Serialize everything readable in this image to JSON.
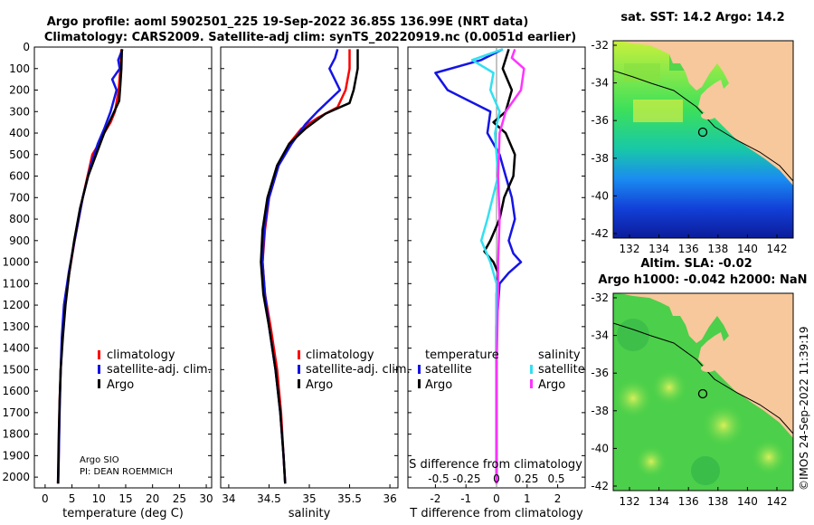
{
  "header": {
    "line1": "Argo profile: aoml 5902501_225 19-Sep-2022 36.85S 136.99E (NRT data)",
    "line2": "Climatology: CARS2009. Satellite-adj clim: synTS_20220919.nc (0.0051d earlier)"
  },
  "footer": {
    "stamp": "©IMOS 24-Sep-2022 11:39:19",
    "credit1": "Argo SIO",
    "credit2": "PI: DEAN ROEMMICH"
  },
  "colors": {
    "climatology": "#ff0000",
    "satellite": "#1414e6",
    "argo": "#000000",
    "temp_satellite": "#1414e6",
    "sal_satellite": "#33e0f0",
    "sal_argo": "#ff33ff",
    "land": "#f7c89b"
  },
  "chart_data": [
    {
      "type": "line",
      "id": "temperature",
      "xlabel": "temperature (deg C)",
      "xlim": [
        -2,
        31
      ],
      "xticks": [
        0,
        5,
        10,
        15,
        20,
        25,
        30
      ],
      "ylim": [
        2050,
        0
      ],
      "yticks": [
        0,
        100,
        200,
        300,
        400,
        500,
        600,
        700,
        800,
        900,
        1000,
        1100,
        1200,
        1300,
        1400,
        1500,
        1600,
        1700,
        1800,
        1900,
        2000
      ],
      "legend": [
        "climatology",
        "satellite-adj. clim.",
        "Argo"
      ],
      "series": [
        {
          "name": "climatology",
          "color": "#ff0000",
          "x": [
            14.2,
            14.0,
            13.7,
            13.0,
            12.2,
            11.0,
            10.0,
            8.8,
            7.0,
            5.5,
            4.5,
            3.6,
            3.2,
            2.9,
            2.7,
            2.6,
            2.5,
            2.4
          ],
          "y": [
            10,
            100,
            200,
            300,
            350,
            400,
            450,
            500,
            700,
            900,
            1050,
            1200,
            1350,
            1500,
            1650,
            1800,
            1950,
            2030
          ]
        },
        {
          "name": "satellite-adj. clim.",
          "color": "#1414e6",
          "x": [
            14.4,
            13.6,
            13.9,
            12.5,
            13.3,
            12.2,
            11.0,
            9.8,
            8.5,
            7.0,
            5.5,
            4.4,
            3.5,
            3.1,
            2.9,
            2.7,
            2.55,
            2.45
          ],
          "y": [
            10,
            60,
            100,
            150,
            200,
            300,
            380,
            450,
            550,
            700,
            900,
            1050,
            1200,
            1350,
            1500,
            1700,
            1900,
            2030
          ]
        },
        {
          "name": "Argo",
          "color": "#000000",
          "x": [
            14.3,
            14.2,
            14.0,
            13.8,
            12.5,
            11.0,
            9.5,
            8.0,
            6.5,
            5.4,
            4.5,
            3.8,
            3.3,
            2.9,
            2.7,
            2.55,
            2.45,
            2.4
          ],
          "y": [
            10,
            100,
            180,
            250,
            320,
            400,
            500,
            600,
            750,
            900,
            1050,
            1200,
            1350,
            1500,
            1650,
            1800,
            1950,
            2030
          ]
        }
      ]
    },
    {
      "type": "line",
      "id": "salinity",
      "xlabel": "salinity",
      "xlim": [
        33.9,
        36.1
      ],
      "xticks": [
        34,
        34.5,
        35,
        35.5,
        36
      ],
      "ylim": [
        2050,
        0
      ],
      "legend": [
        "climatology",
        "satellite-adj. clim.",
        "Argo"
      ],
      "series": [
        {
          "name": "climatology",
          "color": "#ff0000",
          "x": [
            35.5,
            35.5,
            35.45,
            35.35,
            35.1,
            34.9,
            34.75,
            34.62,
            34.5,
            34.45,
            34.42,
            34.45,
            34.52,
            34.6,
            34.65,
            34.68,
            34.7
          ],
          "y": [
            10,
            100,
            200,
            280,
            330,
            380,
            450,
            550,
            700,
            850,
            1000,
            1150,
            1300,
            1500,
            1700,
            1900,
            2030
          ]
        },
        {
          "name": "satellite-adj. clim.",
          "color": "#1414e6",
          "x": [
            35.35,
            35.32,
            35.25,
            35.38,
            35.1,
            34.95,
            34.78,
            34.62,
            34.5,
            34.44,
            34.42,
            34.45,
            34.5,
            34.58,
            34.64,
            34.68,
            34.7
          ],
          "y": [
            10,
            50,
            100,
            200,
            300,
            360,
            450,
            550,
            700,
            850,
            1000,
            1150,
            1300,
            1500,
            1700,
            1900,
            2030
          ]
        },
        {
          "name": "Argo",
          "color": "#000000",
          "x": [
            35.6,
            35.6,
            35.55,
            35.5,
            35.2,
            34.95,
            34.75,
            34.6,
            34.48,
            34.42,
            34.4,
            34.43,
            34.5,
            34.58,
            34.64,
            34.68,
            34.7
          ],
          "y": [
            10,
            100,
            200,
            260,
            310,
            380,
            450,
            550,
            700,
            850,
            1000,
            1150,
            1300,
            1500,
            1700,
            1900,
            2030
          ]
        }
      ]
    },
    {
      "type": "line",
      "id": "differences",
      "xlabel": "T difference from climatology",
      "xlabel2": "S difference from climatology",
      "xlim": [
        -2.9,
        2.9
      ],
      "xticks": [
        -2,
        -1,
        0,
        1,
        2
      ],
      "s_ticks": [
        "-0.5",
        "-0.25",
        "0",
        "0.25",
        "0.5"
      ],
      "ylim": [
        2050,
        0
      ],
      "legend_header_t": "temperature",
      "legend_header_s": "salinity",
      "legend_t": [
        "satellite",
        "Argo"
      ],
      "legend_s": [
        "satellite",
        "Argo"
      ],
      "series": [
        {
          "name": "T satellite",
          "color": "#1414e6",
          "x": [
            0.2,
            -0.5,
            -2.0,
            -1.6,
            -0.2,
            -0.3,
            0.1,
            0.3,
            0.5,
            0.6,
            0.4,
            0.55,
            0.8,
            0.4,
            0.1,
            0,
            0,
            0
          ],
          "y": [
            10,
            60,
            120,
            200,
            300,
            400,
            500,
            600,
            700,
            800,
            900,
            960,
            1000,
            1050,
            1100,
            1300,
            1700,
            2030
          ]
        },
        {
          "name": "T Argo",
          "color": "#000000",
          "x": [
            0.4,
            0.2,
            0.5,
            0.3,
            -0.1,
            0.3,
            0.6,
            0.55,
            0.25,
            0.1,
            -0.2,
            -0.4,
            -0.1,
            0.05,
            0,
            0,
            0
          ],
          "y": [
            10,
            100,
            200,
            300,
            350,
            400,
            500,
            600,
            700,
            800,
            900,
            950,
            1000,
            1050,
            1150,
            1500,
            2030
          ]
        },
        {
          "name": "S satellite",
          "color": "#33e0f0",
          "x": [
            0.2,
            -0.8,
            -0.1,
            -0.2,
            0.1,
            -0.05,
            0.05,
            -0.3,
            -0.5,
            -0.2,
            0,
            0,
            0
          ],
          "y": [
            10,
            60,
            120,
            200,
            300,
            400,
            600,
            800,
            900,
            1000,
            1100,
            1500,
            2030
          ]
        },
        {
          "name": "S Argo",
          "color": "#ff33ff",
          "x": [
            0.6,
            0.5,
            0.9,
            0.8,
            0.3,
            0.1,
            0.05,
            0.1,
            0.05,
            0.05,
            0,
            0
          ],
          "y": [
            10,
            50,
            100,
            200,
            300,
            400,
            600,
            800,
            1000,
            1150,
            1500,
            2030
          ]
        }
      ]
    }
  ],
  "maps": [
    {
      "title": "sat. SST: 14.2 Argo: 14.2",
      "lon_ticks": [
        "132",
        "134",
        "136",
        "138",
        "140",
        "142"
      ],
      "lat_ticks": [
        "-32",
        "-34",
        "-36",
        "-38",
        "-40",
        "-42"
      ]
    },
    {
      "title": "Altim. SLA: -0.02",
      "title2": "Argo h1000: -0.042 h2000: NaN",
      "lon_ticks": [
        "132",
        "134",
        "136",
        "138",
        "140",
        "142"
      ],
      "lat_ticks": [
        "-32",
        "-34",
        "-36",
        "-38",
        "-40",
        "-42"
      ]
    }
  ]
}
